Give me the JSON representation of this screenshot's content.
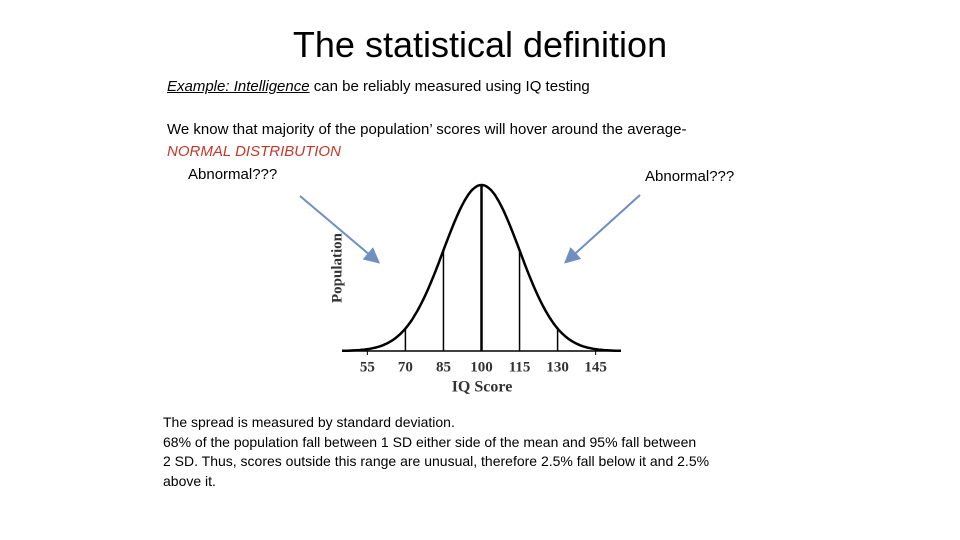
{
  "slide": {
    "title": "The statistical definition",
    "example": {
      "lead": "Example: Intelligence",
      "text": "can be reliably measured using IQ testing"
    },
    "intro": "We know that majority of the population’ scores will hover around the average-",
    "highlight": "NORMAL DISTRIBUTION",
    "annotations": [
      "Abnormal???",
      "Abnormal???"
    ],
    "figure": {
      "y_label": "Population",
      "x_label": "IQ Score",
      "xlim": [
        45,
        155
      ],
      "xticks": [
        55,
        70,
        85,
        100,
        115,
        130,
        145
      ]
    },
    "body": [
      "The spread is measured by standard deviation.",
      "68% of the population fall between 1 SD either side of the mean and 95% fall between",
      "2 SD.  Thus, scores outside this range are unusual, therefore 2.5% fall below it and 2.5%",
      "above it."
    ]
  }
}
